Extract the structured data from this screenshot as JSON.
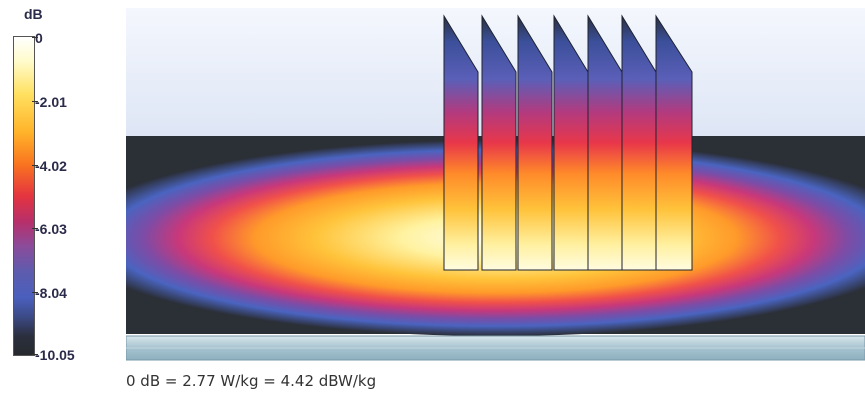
{
  "colorbar": {
    "unit": "dB",
    "ticks": [
      "0",
      "-2.01",
      "-4.02",
      "-6.03",
      "-8.04",
      "-10.05"
    ]
  },
  "caption": "0 dB = 2.77 W/kg = 4.42 dBW/kg",
  "colors": {
    "background_top": "#e6ecf8",
    "dark_band": "#2b2f36",
    "ellipse_core": "#fffde0",
    "slab": "#a8c4cf"
  }
}
